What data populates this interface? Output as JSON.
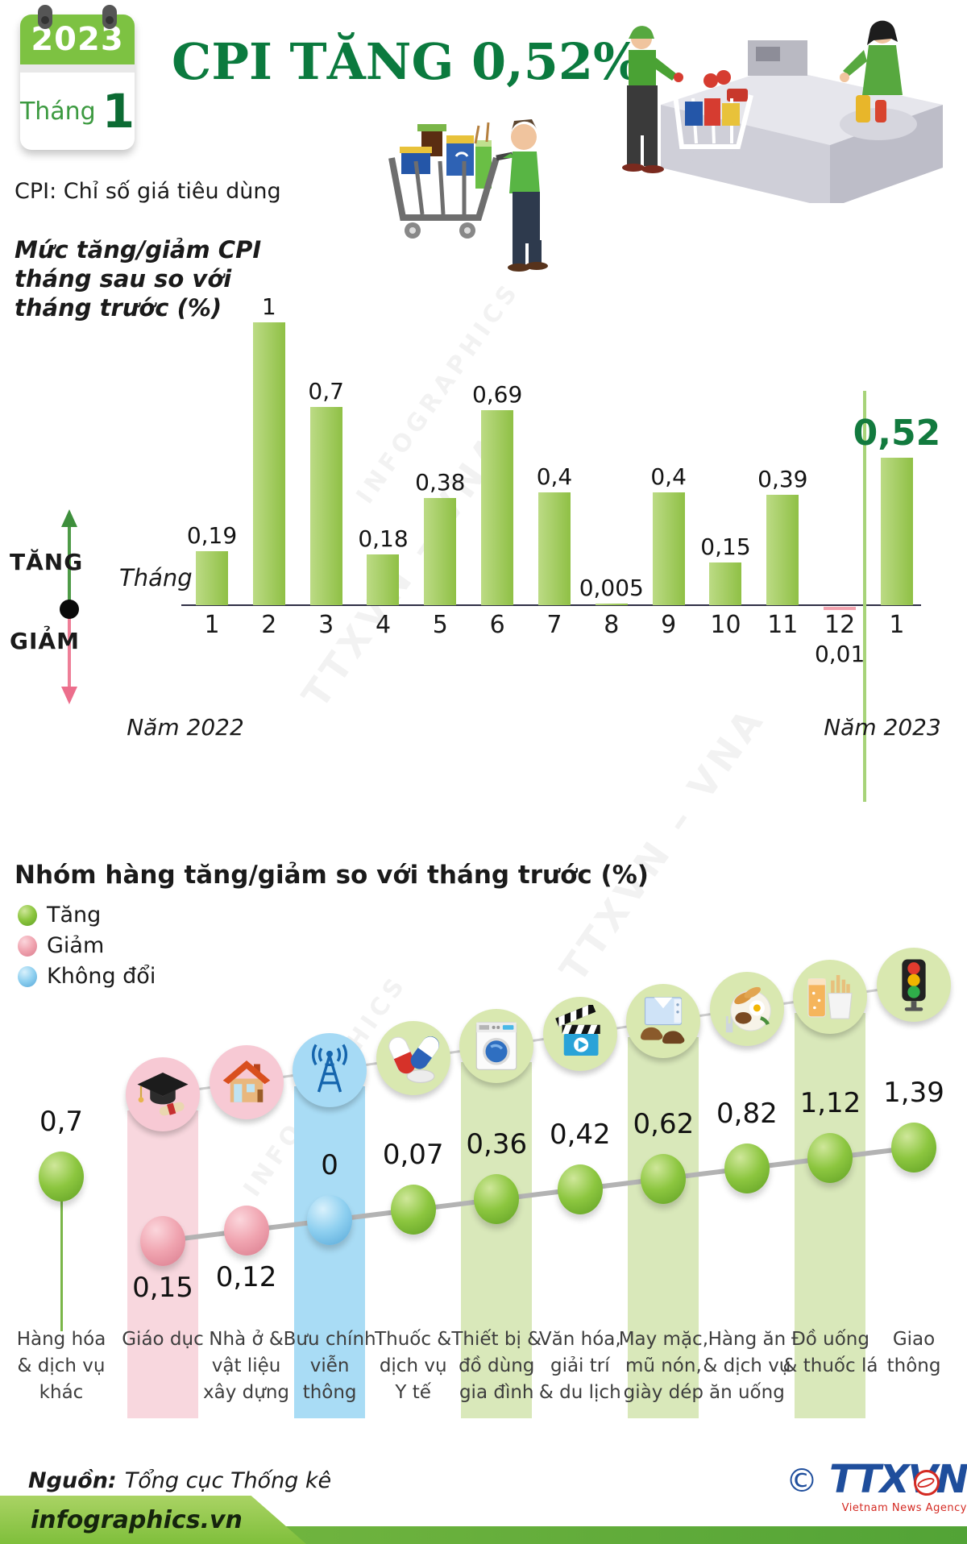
{
  "header": {
    "calendar_year": "2023",
    "calendar_month_label": "Tháng",
    "calendar_month_number": "1",
    "title": "CPI TĂNG 0,52%",
    "subtitle": "CPI: Chỉ số giá tiêu dùng"
  },
  "watermarks": [
    "TTXVN – VNA",
    "INFOGRAPHICS",
    "TTXVN – VNA",
    "INFOGRAPHICS"
  ],
  "chart1": {
    "title_lines": [
      "Mức tăng/giảm CPI",
      "tháng sau so với",
      "tháng trước (%)"
    ],
    "axis_label": "Tháng",
    "legend_up": "TĂNG",
    "legend_down": "GIẢM",
    "year_left": "Năm 2022",
    "year_right": "Năm 2023",
    "months": [
      "1",
      "2",
      "3",
      "4",
      "5",
      "6",
      "7",
      "8",
      "9",
      "10",
      "11",
      "12",
      "1"
    ],
    "value_labels": [
      "0,19",
      "1",
      "0,7",
      "0,18",
      "0,38",
      "0,69",
      "0,4",
      "0,005",
      "0,4",
      "0,15",
      "0,39",
      "0,01",
      "0,52"
    ],
    "values": [
      0.19,
      1,
      0.7,
      0.18,
      0.38,
      0.69,
      0.4,
      0.005,
      0.4,
      0.15,
      0.39,
      -0.01,
      0.52
    ]
  },
  "chart2": {
    "title": "Nhóm hàng tăng/giảm so với tháng trước (%)",
    "legend": [
      {
        "label": "Tăng",
        "color": "green"
      },
      {
        "label": "Giảm",
        "color": "pink"
      },
      {
        "label": "Không đổi",
        "color": "blue"
      }
    ],
    "categories": [
      {
        "label_lines": [
          "Hàng hóa",
          "& dịch vụ",
          "khác"
        ],
        "value_label": "0,7",
        "value": 0.7,
        "direction": "up",
        "band": null,
        "ball": "green",
        "icon": null,
        "value_pos": "above"
      },
      {
        "label_lines": [
          "Giáo dục"
        ],
        "value_label": "0,15",
        "value": -0.15,
        "direction": "down",
        "band": "pink",
        "ball": "pink",
        "icon": "graduation-cap",
        "value_pos": "below"
      },
      {
        "label_lines": [
          "Nhà ở &",
          "vật liệu",
          "xây dựng"
        ],
        "value_label": "0,12",
        "value": -0.12,
        "direction": "down",
        "band": null,
        "ball": "pink",
        "icon": "house",
        "value_pos": "below"
      },
      {
        "label_lines": [
          "Bưu chính",
          "viễn",
          "thông"
        ],
        "value_label": "0",
        "value": 0,
        "direction": "flat",
        "band": "blue",
        "ball": "blue",
        "icon": "antenna",
        "value_pos": "above"
      },
      {
        "label_lines": [
          "Thuốc &",
          "dịch vụ",
          "Y tế"
        ],
        "value_label": "0,07",
        "value": 0.07,
        "direction": "up",
        "band": null,
        "ball": "green",
        "icon": "pills",
        "value_pos": "above"
      },
      {
        "label_lines": [
          "Thiết bị &",
          "đồ dùng",
          "gia đình"
        ],
        "value_label": "0,36",
        "value": 0.36,
        "direction": "up",
        "band": "green",
        "ball": "green",
        "icon": "washing-machine",
        "value_pos": "above"
      },
      {
        "label_lines": [
          "Văn hóa,",
          "giải trí",
          "& du lịch"
        ],
        "value_label": "0,42",
        "value": 0.42,
        "direction": "up",
        "band": null,
        "ball": "green",
        "icon": "cinema",
        "value_pos": "above"
      },
      {
        "label_lines": [
          "May mặc,",
          "mũ nón,",
          "giày dép"
        ],
        "value_label": "0,62",
        "value": 0.62,
        "direction": "up",
        "band": "green",
        "ball": "green",
        "icon": "clothing",
        "value_pos": "above"
      },
      {
        "label_lines": [
          "Hàng ăn",
          "& dịch vụ",
          "ăn uống"
        ],
        "value_label": "0,82",
        "value": 0.82,
        "direction": "up",
        "band": null,
        "ball": "green",
        "icon": "food",
        "value_pos": "above"
      },
      {
        "label_lines": [
          "Đồ uống",
          "& thuốc lá"
        ],
        "value_label": "1,12",
        "value": 1.12,
        "direction": "up",
        "band": "green",
        "ball": "green",
        "icon": "beverages",
        "value_pos": "above"
      },
      {
        "label_lines": [
          "Giao",
          "thông"
        ],
        "value_label": "1,39",
        "value": 1.39,
        "direction": "up",
        "band": null,
        "ball": "green",
        "icon": "traffic-light",
        "value_pos": "above"
      }
    ]
  },
  "footer": {
    "source_label": "Nguồn:",
    "source_value": "Tổng cục Thống kê",
    "site": "infographics.vn",
    "copyright": "©",
    "agency": "TTXVN",
    "agency_sub": "Vietnam News Agency"
  },
  "colors": {
    "title_green": "#0b7a3e",
    "bar_green": "#8fc045",
    "bar_negative_pink": "#f2a2ae",
    "band_pink": "#f8d7de",
    "band_blue": "#a9dcf5",
    "band_green": "#d9e8ba",
    "footer_green": "#7cbb42",
    "agency_blue": "#1f4e9c",
    "agency_red": "#d42a22"
  },
  "chart_data": [
    {
      "type": "bar",
      "title": "Mức tăng/giảm CPI tháng sau so với tháng trước (%)",
      "xlabel": "Tháng",
      "ylabel": "%",
      "categories": [
        "1/2022",
        "2/2022",
        "3/2022",
        "4/2022",
        "5/2022",
        "6/2022",
        "7/2022",
        "8/2022",
        "9/2022",
        "10/2022",
        "11/2022",
        "12/2022",
        "1/2023"
      ],
      "values": [
        0.19,
        1,
        0.7,
        0.18,
        0.38,
        0.69,
        0.4,
        0.005,
        0.4,
        0.15,
        0.39,
        -0.01,
        0.52
      ],
      "annotations": [
        "Năm 2022",
        "Năm 2023"
      ],
      "ylim": [
        -0.1,
        1.1
      ],
      "grid": false
    },
    {
      "type": "scatter",
      "title": "Nhóm hàng tăng/giảm so với tháng trước (%)",
      "categories": [
        "Hàng hóa & dịch vụ khác",
        "Giáo dục",
        "Nhà ở & vật liệu xây dựng",
        "Bưu chính viễn thông",
        "Thuốc & dịch vụ Y tế",
        "Thiết bị & đồ dùng gia đình",
        "Văn hóa, giải trí & du lịch",
        "May mặc, mũ nón, giày dép",
        "Hàng ăn & dịch vụ ăn uống",
        "Đồ uống & thuốc lá",
        "Giao thông"
      ],
      "values": [
        0.7,
        -0.15,
        -0.12,
        0,
        0.07,
        0.36,
        0.42,
        0.62,
        0.82,
        1.12,
        1.39
      ],
      "legend": [
        "Tăng",
        "Giảm",
        "Không đổi"
      ],
      "legend_position": "top-left",
      "grid": false
    }
  ]
}
